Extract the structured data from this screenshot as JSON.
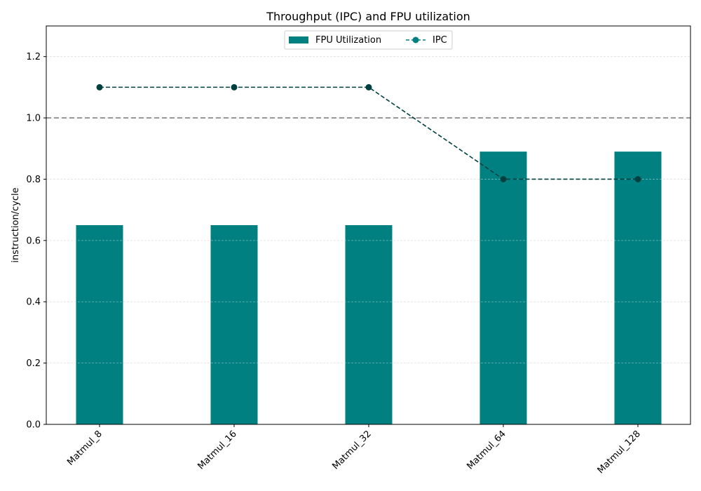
{
  "chart_data": {
    "type": "bar",
    "title": "Throughput (IPC) and FPU utilization",
    "xlabel": "",
    "ylabel": "instruction/cycle",
    "categories": [
      "Matmul_8",
      "Matmul_16",
      "Matmul_32",
      "Matmul_64",
      "Matmul_128"
    ],
    "series": [
      {
        "name": "FPU Utilization",
        "type": "bar",
        "values": [
          0.65,
          0.65,
          0.65,
          0.89,
          0.89
        ],
        "color": "#008080"
      },
      {
        "name": "IPC",
        "type": "line",
        "style": "dashed",
        "marker": "circle",
        "values": [
          1.1,
          1.1,
          1.1,
          0.8,
          0.8
        ],
        "color": "#004040",
        "legend_color": "#008080"
      }
    ],
    "reference_line": {
      "y": 1.0,
      "style": "dashed",
      "color": "#808080"
    },
    "ylim": [
      0,
      1.3
    ],
    "yticks": [
      0.0,
      0.2,
      0.4,
      0.6,
      0.8,
      1.0,
      1.2
    ],
    "ytick_labels": [
      "0.0",
      "0.2",
      "0.4",
      "0.6",
      "0.8",
      "1.0",
      "1.2"
    ],
    "grid": "y",
    "legend": "upper-center"
  }
}
